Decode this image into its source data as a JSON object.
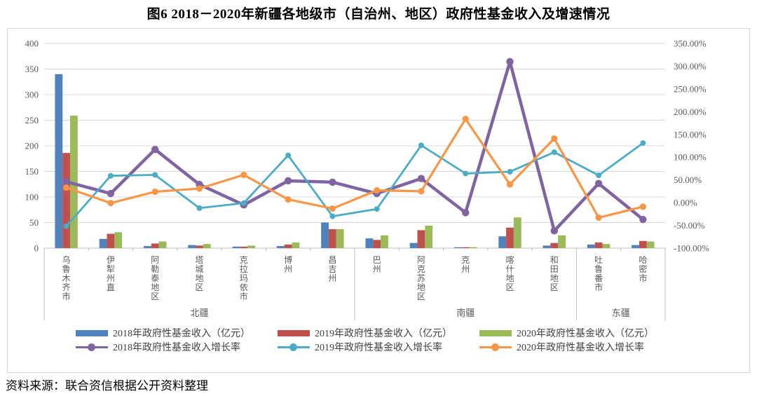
{
  "title": "图6  2018－2020年新疆各地级市（自治州、地区）政府性基金收入及增速情况",
  "source_note": "资料来源：联合资信根据公开资料整理",
  "chart_data": {
    "type": "bar+line combo",
    "grid": true,
    "legend_position": "bottom",
    "categories": [
      "乌鲁木齐市",
      "伊犁州直",
      "阿勒泰地区",
      "塔城地区",
      "克拉玛依市",
      "博州",
      "昌吉州",
      "巴州",
      "阿克苏地区",
      "克州",
      "喀什地区",
      "和田地区",
      "吐鲁番市",
      "哈密市"
    ],
    "category_groups": [
      {
        "label": "北疆",
        "count": 7
      },
      {
        "label": "南疆",
        "count": 5
      },
      {
        "label": "东疆",
        "count": 2
      }
    ],
    "left_axis": {
      "min": 0,
      "max": 400,
      "step": 50,
      "ticks": [
        "400",
        "350",
        "300",
        "250",
        "200",
        "150",
        "100",
        "50",
        "0"
      ]
    },
    "right_axis": {
      "min": -100,
      "max": 350,
      "step": 50,
      "ticks": [
        "350.00%",
        "300.00%",
        "250.00%",
        "200.00%",
        "150.00%",
        "100.00%",
        "50.00%",
        "0.00%",
        "-50.00%",
        "-100.00%"
      ]
    },
    "series": [
      {
        "name": "2018年政府性基金收入（亿元）",
        "type": "bar",
        "axis": "left",
        "color": "#4F81BD",
        "values": [
          340,
          18,
          4,
          6,
          3,
          4,
          50,
          19,
          10,
          1,
          23,
          5,
          7,
          6
        ]
      },
      {
        "name": "2019年政府性基金收入（亿元）",
        "type": "bar",
        "axis": "left",
        "color": "#C0504D",
        "values": [
          186,
          28,
          9,
          5,
          3,
          7,
          37,
          16,
          35,
          1,
          40,
          10,
          11,
          14
        ]
      },
      {
        "name": "2020年政府性基金收入（亿元）",
        "type": "bar",
        "axis": "left",
        "color": "#9BBB59",
        "values": [
          259,
          31,
          13,
          8,
          5,
          11,
          37,
          25,
          44,
          2,
          60,
          25,
          8,
          13
        ]
      },
      {
        "name": "2018年政府性基金收入增长率",
        "type": "line",
        "axis": "right",
        "color": "#8064A2",
        "values": [
          46,
          20,
          117,
          40,
          -5,
          48,
          45,
          20,
          53,
          -22,
          310,
          -62,
          42,
          -37
        ]
      },
      {
        "name": "2019年政府性基金收入增长率",
        "type": "line",
        "axis": "right",
        "color": "#4BACC6",
        "values": [
          -52,
          59,
          61,
          -12,
          -1,
          104,
          -30,
          -14,
          126,
          64,
          68,
          111,
          60,
          131
        ]
      },
      {
        "name": "2020年政府性基金收入增长率",
        "type": "line",
        "axis": "right",
        "color": "#F79646",
        "values": [
          33,
          -1,
          24,
          31,
          61,
          7,
          -13,
          27,
          25,
          184,
          40,
          141,
          -33,
          -9
        ]
      }
    ],
    "style": {
      "gridline_color": "#D9D9D9",
      "axis_line_color": "#BFBFBF",
      "axis_text_color": "#595959"
    }
  }
}
